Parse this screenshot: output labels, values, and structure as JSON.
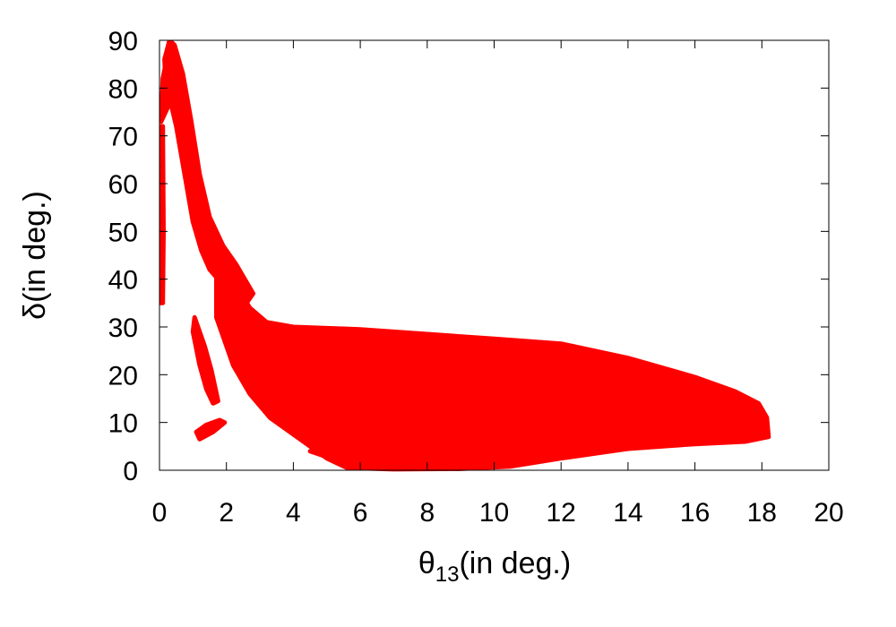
{
  "chart_data": {
    "type": "scatter",
    "title": "",
    "xlabel": {
      "symbol": "θ",
      "subscript": "13",
      "text": "(in deg.)"
    },
    "ylabel": {
      "symbol": "δ",
      "text": "(in deg.)"
    },
    "xlim": [
      0,
      20
    ],
    "ylim": [
      0,
      90
    ],
    "xticks": [
      0,
      2,
      4,
      6,
      8,
      10,
      12,
      14,
      16,
      18,
      20
    ],
    "yticks": [
      0,
      10,
      20,
      30,
      40,
      50,
      60,
      70,
      80,
      90
    ],
    "grid": false,
    "legend": "none",
    "marker": "+",
    "color": "#ff0000",
    "regions": [
      {
        "name": "main-band",
        "polygon": [
          [
            1.7,
            47
          ],
          [
            2.2,
            40
          ],
          [
            2.7,
            34
          ],
          [
            3.2,
            31
          ],
          [
            4.0,
            30
          ],
          [
            6,
            29.5
          ],
          [
            8,
            28.5
          ],
          [
            10,
            27.5
          ],
          [
            12,
            26.5
          ],
          [
            14,
            23.5
          ],
          [
            16,
            19.5
          ],
          [
            17.2,
            16.5
          ],
          [
            17.9,
            14
          ],
          [
            18.15,
            11
          ],
          [
            18.2,
            7
          ],
          [
            17.5,
            6
          ],
          [
            16,
            5.5
          ],
          [
            14,
            4.5
          ],
          [
            12,
            2.5
          ],
          [
            10.5,
            0.8
          ],
          [
            9,
            0.3
          ],
          [
            7,
            0.2
          ],
          [
            5.6,
            0.5
          ],
          [
            5.0,
            2.5
          ],
          [
            4.5,
            5
          ],
          [
            3.9,
            8
          ],
          [
            3.3,
            11
          ],
          [
            2.7,
            16
          ],
          [
            2.2,
            22
          ],
          [
            1.7,
            32
          ]
        ]
      },
      {
        "name": "upper-arm",
        "polygon": [
          [
            0.15,
            86
          ],
          [
            0.3,
            90
          ],
          [
            0.45,
            89
          ],
          [
            0.7,
            83
          ],
          [
            0.95,
            73
          ],
          [
            1.2,
            62
          ],
          [
            1.5,
            53
          ],
          [
            1.9,
            47
          ],
          [
            2.3,
            43
          ],
          [
            2.8,
            37
          ],
          [
            2.5,
            34
          ],
          [
            2.0,
            38
          ],
          [
            1.5,
            42
          ],
          [
            1.25,
            46
          ],
          [
            1.0,
            52
          ],
          [
            0.75,
            62
          ],
          [
            0.5,
            72
          ],
          [
            0.3,
            78
          ],
          [
            0.18,
            82
          ]
        ]
      },
      {
        "name": "left-strip",
        "polygon": [
          [
            -0.05,
            72
          ],
          [
            0.1,
            72
          ],
          [
            0.12,
            50
          ],
          [
            0.1,
            35
          ],
          [
            -0.05,
            35
          ]
        ]
      },
      {
        "name": "tip",
        "polygon": [
          [
            0.05,
            73
          ],
          [
            0.25,
            76
          ],
          [
            0.35,
            86
          ],
          [
            0.3,
            89
          ],
          [
            0.1,
            82
          ]
        ]
      },
      {
        "name": "lower-filament",
        "polygon": [
          [
            3.0,
            22
          ],
          [
            3.6,
            14
          ],
          [
            4.3,
            8
          ],
          [
            5.2,
            3.5
          ],
          [
            5.6,
            2.5
          ],
          [
            5.5,
            4.5
          ],
          [
            4.8,
            7
          ],
          [
            4.1,
            10
          ],
          [
            3.5,
            15
          ],
          [
            3.1,
            21
          ]
        ]
      },
      {
        "name": "island-upper",
        "polygon": [
          [
            1.05,
            32
          ],
          [
            1.35,
            26
          ],
          [
            1.55,
            21
          ],
          [
            1.75,
            14.5
          ],
          [
            1.6,
            14
          ],
          [
            1.4,
            17
          ],
          [
            1.2,
            22
          ],
          [
            1.0,
            29
          ]
        ]
      },
      {
        "name": "island-lower",
        "polygon": [
          [
            1.2,
            6.5
          ],
          [
            1.6,
            8
          ],
          [
            1.95,
            10
          ],
          [
            1.8,
            10.5
          ],
          [
            1.4,
            9.5
          ],
          [
            1.1,
            8
          ]
        ]
      },
      {
        "name": "filament-tail",
        "polygon": [
          [
            4.5,
            4
          ],
          [
            5.0,
            2.8
          ],
          [
            5.6,
            1.6
          ],
          [
            5.5,
            2.6
          ],
          [
            4.9,
            3.8
          ]
        ]
      }
    ]
  }
}
